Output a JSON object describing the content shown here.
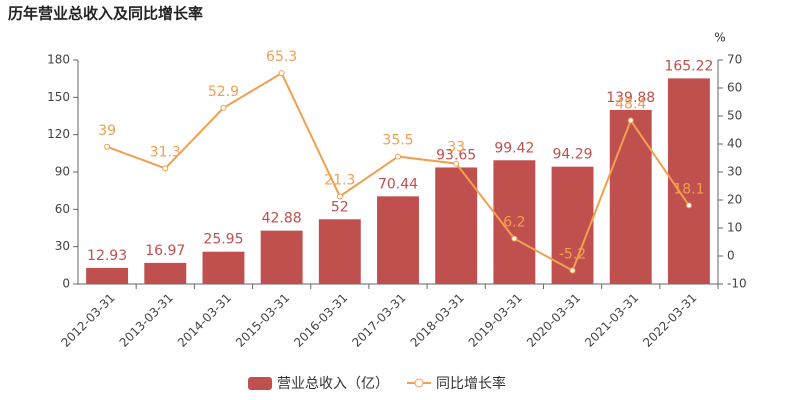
{
  "chart_data": {
    "type": "bar",
    "title": "历年营业总收入及同比增长率",
    "y2_label": "%",
    "categories": [
      "2012-03-31",
      "2013-03-31",
      "2014-03-31",
      "2015-03-31",
      "2016-03-31",
      "2017-03-31",
      "2018-03-31",
      "2019-03-31",
      "2020-03-31",
      "2021-03-31",
      "2022-03-31"
    ],
    "series": [
      {
        "name": "营业总收入（亿）",
        "type": "bar",
        "color": "#c0504d",
        "values": [
          12.93,
          16.97,
          25.95,
          42.88,
          52,
          70.44,
          93.65,
          99.42,
          94.29,
          139.88,
          165.22
        ]
      },
      {
        "name": "同比增长率",
        "type": "line",
        "axis": "y2",
        "color": "#f0a050",
        "values": [
          39,
          31.3,
          52.9,
          65.3,
          21.3,
          35.5,
          33,
          6.2,
          -5.2,
          48.4,
          18.1
        ]
      }
    ],
    "ylim": [
      0,
      180
    ],
    "yticks": [
      0,
      30,
      60,
      90,
      120,
      150,
      180
    ],
    "y2lim": [
      -10,
      70
    ],
    "y2ticks": [
      -10,
      0,
      10,
      20,
      30,
      40,
      50,
      60,
      70
    ],
    "grid": false
  }
}
